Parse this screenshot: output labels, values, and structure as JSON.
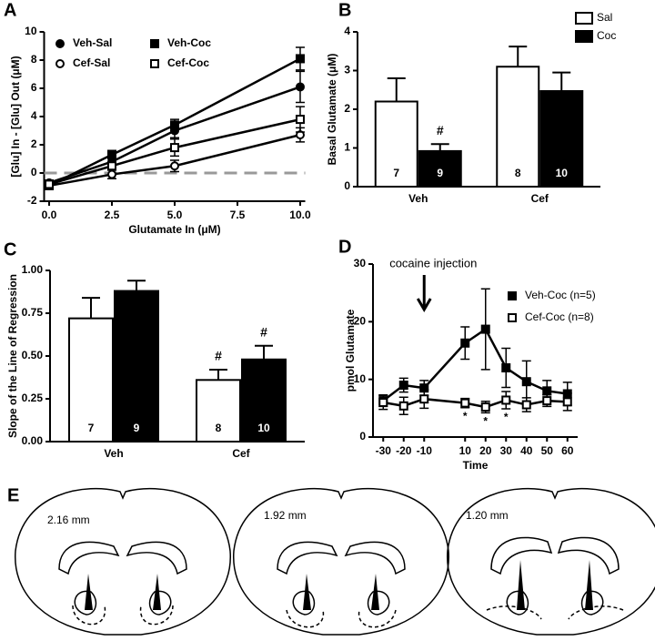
{
  "chart_data": [
    {
      "label": "A",
      "type": "line",
      "x": [
        0,
        2.5,
        5,
        10
      ],
      "series": [
        {
          "name": "Veh-Sal",
          "marker": "circle",
          "fill": "#000",
          "color": "#000",
          "values": [
            -0.7,
            0.8,
            3.0,
            6.1
          ],
          "errors": [
            0.2,
            0.3,
            0.5,
            1.1
          ]
        },
        {
          "name": "Cef-Sal",
          "marker": "circle",
          "fill": "#fff",
          "color": "#000",
          "values": [
            -0.9,
            -0.1,
            0.5,
            2.7
          ],
          "errors": [
            0.2,
            0.3,
            0.4,
            0.5
          ]
        },
        {
          "name": "Veh-Coc",
          "marker": "square",
          "fill": "#000",
          "color": "#000",
          "values": [
            -0.9,
            1.3,
            3.4,
            8.1
          ],
          "errors": [
            0.2,
            0.3,
            0.4,
            0.8
          ]
        },
        {
          "name": "Cef-Coc",
          "marker": "square",
          "fill": "#fff",
          "color": "#000",
          "values": [
            -0.8,
            0.5,
            1.8,
            3.8
          ],
          "errors": [
            0.2,
            0.3,
            0.6,
            0.9
          ]
        }
      ],
      "reference_line": 0,
      "xlim": [
        -0.2,
        10.2
      ],
      "xticks": [
        {
          "value": 0,
          "label": "0.0"
        },
        {
          "value": 2.5,
          "label": "2.5"
        },
        {
          "value": 5,
          "label": "5.0"
        },
        {
          "value": 7.5,
          "label": "7.5"
        },
        {
          "value": 10,
          "label": "10.0"
        }
      ],
      "ylim": [
        -2,
        10
      ],
      "yticks": [
        -2,
        0,
        2,
        4,
        6,
        8,
        10
      ],
      "x_label": "Glutamate In (μM)",
      "y_label": "[Glu] In - [Glu] Out  (μM)"
    },
    {
      "label": "B",
      "type": "bar",
      "categories": [
        "Veh",
        "Cef"
      ],
      "series": [
        {
          "name": "Sal",
          "color": "#fff",
          "values": [
            2.2,
            3.1
          ],
          "errors": [
            0.6,
            0.52
          ],
          "n": [
            7,
            8
          ],
          "significance": [
            null,
            null
          ]
        },
        {
          "name": "Coc",
          "color": "#000",
          "values": [
            0.92,
            2.47
          ],
          "errors": [
            0.18,
            0.48
          ],
          "n": [
            9,
            10
          ],
          "significance": [
            "#",
            null
          ]
        }
      ],
      "ylim": [
        0,
        4
      ],
      "yticks": [
        0,
        1,
        2,
        3,
        4
      ],
      "y_label": "Basal Glutamate (μM)"
    },
    {
      "label": "C",
      "type": "bar",
      "categories": [
        "Veh",
        "Cef"
      ],
      "series": [
        {
          "color": "#fff",
          "values": [
            0.72,
            0.36
          ],
          "errors": [
            0.12,
            0.06
          ],
          "n": [
            7,
            8
          ],
          "significance": [
            null,
            "#"
          ]
        },
        {
          "color": "#000",
          "values": [
            0.88,
            0.48
          ],
          "errors": [
            0.06,
            0.08
          ],
          "n": [
            9,
            10
          ],
          "significance": [
            null,
            "#"
          ]
        }
      ],
      "ylim": [
        0,
        1.0
      ],
      "yticks": [
        {
          "value": 0,
          "label": "0.00"
        },
        {
          "value": 0.25,
          "label": "0.25"
        },
        {
          "value": 0.5,
          "label": "0.50"
        },
        {
          "value": 0.75,
          "label": "0.75"
        },
        {
          "value": 1.0,
          "label": "1.00"
        }
      ],
      "y_label": "Slope of the Line of Regression"
    },
    {
      "label": "D",
      "type": "line",
      "x": [
        -30,
        -20,
        -10,
        10,
        20,
        30,
        40,
        50,
        60
      ],
      "series": [
        {
          "name": "Veh-Coc (n=5)",
          "marker": "square",
          "fill": "#000",
          "color": "#000",
          "values": [
            6.3,
            9.0,
            8.5,
            16.3,
            18.7,
            12.0,
            9.6,
            8.0,
            7.5
          ],
          "errors": [
            1.0,
            1.2,
            1.3,
            2.8,
            7.0,
            3.4,
            3.6,
            1.8,
            2.0
          ],
          "significance": [
            null,
            null,
            null,
            null,
            null,
            null,
            null,
            null,
            null
          ]
        },
        {
          "name": "Cef-Coc (n=8)",
          "marker": "square",
          "fill": "#fff",
          "color": "#000",
          "values": [
            6.0,
            5.4,
            6.6,
            5.9,
            5.2,
            6.4,
            5.6,
            6.3,
            6.1
          ],
          "errors": [
            1.2,
            1.5,
            1.6,
            0.8,
            1.0,
            1.5,
            1.2,
            1.0,
            1.5
          ],
          "significance": [
            null,
            null,
            null,
            "*",
            "*",
            "*",
            null,
            null,
            null
          ]
        }
      ],
      "annotation": {
        "text": "cocaine injection",
        "x": -10
      },
      "xlim": [
        -35,
        65
      ],
      "xticks": [
        -30,
        -20,
        -10,
        10,
        20,
        30,
        40,
        50,
        60
      ],
      "ylim": [
        0,
        30
      ],
      "yticks": [
        0,
        10,
        20,
        30
      ],
      "x_label": "Time",
      "y_label": "pmol Glutamate"
    }
  ],
  "sections": {
    "label": "E",
    "depths": [
      "2.16 mm",
      "1.92 mm",
      "1.20 mm"
    ]
  }
}
